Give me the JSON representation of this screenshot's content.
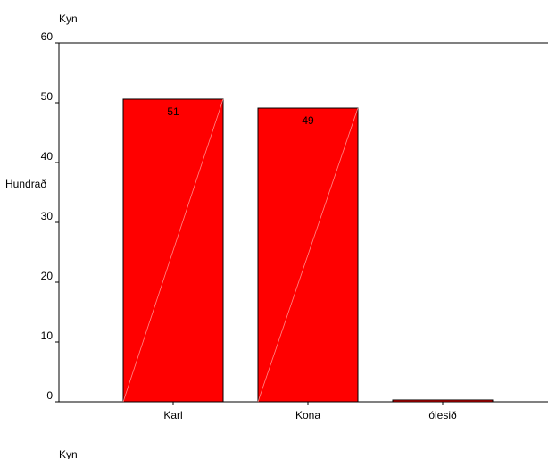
{
  "chart_data": {
    "type": "bar",
    "title": "Kyn",
    "xlabel": "Kyn",
    "ylabel": "Hundrað",
    "categories": [
      "Karl",
      "Kona",
      "ólesið"
    ],
    "values": [
      50.6,
      49.1,
      0.3
    ],
    "data_labels": [
      "51",
      "49",
      ""
    ],
    "yticks": [
      0,
      10,
      20,
      30,
      40,
      50,
      60
    ],
    "ylim": [
      0,
      60
    ],
    "grid": false,
    "legend": "none",
    "bar_color": "#ff0000",
    "bar_edge": "#000000"
  }
}
